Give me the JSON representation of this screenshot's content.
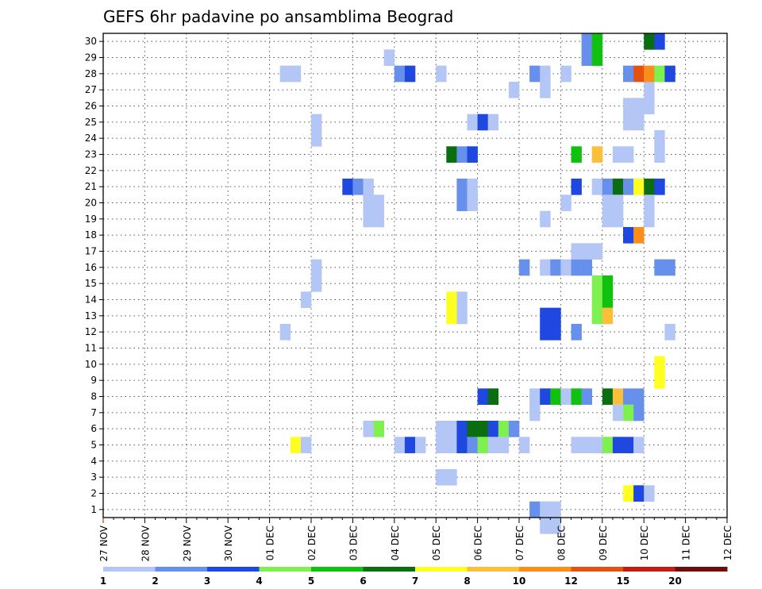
{
  "chart_data": {
    "type": "heatmap",
    "title": "GEFS 6hr padavine po ansamblima Beograd",
    "xlabel": "",
    "ylabel": "",
    "x_tick_labels": [
      "27 NOV",
      "28 NOV",
      "29 NOV",
      "30 NOV",
      "01 DEC",
      "02 DEC",
      "03 DEC",
      "04 DEC",
      "05 DEC",
      "06 DEC",
      "07 DEC",
      "08 DEC",
      "09 DEC",
      "10 DEC",
      "11 DEC",
      "12 DEC"
    ],
    "y_tick_labels": [
      "1",
      "2",
      "3",
      "4",
      "5",
      "6",
      "7",
      "8",
      "9",
      "10",
      "11",
      "12",
      "13",
      "14",
      "15",
      "16",
      "17",
      "18",
      "19",
      "20",
      "21",
      "22",
      "23",
      "24",
      "25",
      "26",
      "27",
      "28",
      "29",
      "30"
    ],
    "x_unit": "6-hour steps from 27 NOV 00",
    "x_range": [
      0,
      60
    ],
    "y_range": [
      0.5,
      30.5
    ],
    "grid": true,
    "colorbar": {
      "levels": [
        "1",
        "2",
        "3",
        "4",
        "5",
        "6",
        "7",
        "8",
        "10",
        "12",
        "15",
        "20"
      ],
      "colors": [
        "#b4c6f5",
        "#6690ec",
        "#1f48e0",
        "#7ef04f",
        "#10c20f",
        "#0a6e10",
        "#ffff20",
        "#fcbf3a",
        "#fb8d18",
        "#e45212",
        "#c01e14",
        "#6f0c0c"
      ]
    },
    "cells": [
      [
        17,
        28,
        0
      ],
      [
        18,
        28,
        0
      ],
      [
        20,
        24,
        0
      ],
      [
        20,
        25,
        0
      ],
      [
        19,
        14,
        0
      ],
      [
        20,
        15,
        0
      ],
      [
        20,
        16,
        0
      ],
      [
        17,
        12,
        0
      ],
      [
        18,
        5,
        6
      ],
      [
        19,
        5,
        0
      ],
      [
        23,
        21,
        2
      ],
      [
        24,
        21,
        1
      ],
      [
        25,
        21,
        0
      ],
      [
        25,
        20,
        0
      ],
      [
        26,
        20,
        0
      ],
      [
        25,
        19,
        0
      ],
      [
        26,
        19,
        0
      ],
      [
        25,
        6,
        0
      ],
      [
        26,
        6,
        3
      ],
      [
        27,
        29,
        0
      ],
      [
        28,
        28,
        1
      ],
      [
        29,
        28,
        2
      ],
      [
        28,
        5,
        0
      ],
      [
        29,
        5,
        2
      ],
      [
        30,
        5,
        0
      ],
      [
        32,
        28,
        0
      ],
      [
        32,
        6,
        0
      ],
      [
        33,
        6,
        0
      ],
      [
        32,
        5,
        0
      ],
      [
        33,
        5,
        0
      ],
      [
        32,
        3,
        0
      ],
      [
        33,
        3,
        0
      ],
      [
        33,
        23,
        5
      ],
      [
        34,
        23,
        1
      ],
      [
        35,
        23,
        2
      ],
      [
        34,
        21,
        1
      ],
      [
        35,
        21,
        0
      ],
      [
        34,
        20,
        1
      ],
      [
        35,
        20,
        0
      ],
      [
        33,
        14,
        6
      ],
      [
        34,
        14,
        0
      ],
      [
        33,
        13,
        6
      ],
      [
        34,
        13,
        0
      ],
      [
        35,
        25,
        0
      ],
      [
        36,
        25,
        2
      ],
      [
        37,
        25,
        0
      ],
      [
        36,
        8,
        2
      ],
      [
        37,
        8,
        5
      ],
      [
        34,
        6,
        2
      ],
      [
        35,
        6,
        5
      ],
      [
        36,
        6,
        5
      ],
      [
        37,
        6,
        2
      ],
      [
        38,
        6,
        3
      ],
      [
        39,
        6,
        1
      ],
      [
        34,
        5,
        2
      ],
      [
        35,
        5,
        1
      ],
      [
        36,
        5,
        3
      ],
      [
        37,
        5,
        0
      ],
      [
        38,
        5,
        0
      ],
      [
        40,
        5,
        0
      ],
      [
        39,
        27,
        0
      ],
      [
        40,
        16,
        1
      ],
      [
        41,
        28,
        1
      ],
      [
        42,
        28,
        0
      ],
      [
        42,
        27,
        0
      ],
      [
        42,
        19,
        0
      ],
      [
        41,
        1,
        1
      ],
      [
        42,
        1,
        0
      ],
      [
        43,
        1,
        0
      ],
      [
        42,
        0,
        0
      ],
      [
        43,
        0,
        0
      ],
      [
        44,
        28,
        0
      ],
      [
        42,
        16,
        0
      ],
      [
        43,
        16,
        1
      ],
      [
        44,
        16,
        0
      ],
      [
        45,
        16,
        1
      ],
      [
        46,
        16,
        1
      ],
      [
        45,
        17,
        0
      ],
      [
        46,
        17,
        0
      ],
      [
        47,
        17,
        0
      ],
      [
        42,
        13,
        2
      ],
      [
        43,
        13,
        2
      ],
      [
        42,
        12,
        2
      ],
      [
        43,
        12,
        2
      ],
      [
        41,
        8,
        0
      ],
      [
        42,
        8,
        2
      ],
      [
        43,
        8,
        4
      ],
      [
        44,
        8,
        0
      ],
      [
        45,
        8,
        4
      ],
      [
        46,
        8,
        1
      ],
      [
        41,
        7,
        0
      ],
      [
        45,
        23,
        4
      ],
      [
        45,
        21,
        2
      ],
      [
        44,
        20,
        0
      ],
      [
        45,
        12,
        1
      ],
      [
        46,
        29,
        1
      ],
      [
        47,
        29,
        4
      ],
      [
        46,
        30,
        1
      ],
      [
        47,
        30,
        4
      ],
      [
        47,
        21,
        0
      ],
      [
        48,
        21,
        1
      ],
      [
        49,
        21,
        5
      ],
      [
        50,
        21,
        1
      ],
      [
        51,
        21,
        6
      ],
      [
        52,
        21,
        5
      ],
      [
        53,
        21,
        2
      ],
      [
        48,
        20,
        0
      ],
      [
        49,
        20,
        0
      ],
      [
        48,
        19,
        0
      ],
      [
        49,
        19,
        0
      ],
      [
        50,
        18,
        2
      ],
      [
        51,
        18,
        8
      ],
      [
        52,
        19,
        0
      ],
      [
        52,
        20,
        0
      ],
      [
        47,
        23,
        7
      ],
      [
        49,
        23,
        0
      ],
      [
        50,
        23,
        0
      ],
      [
        47,
        15,
        3
      ],
      [
        48,
        15,
        4
      ],
      [
        47,
        14,
        3
      ],
      [
        48,
        14,
        4
      ],
      [
        47,
        13,
        3
      ],
      [
        48,
        13,
        7
      ],
      [
        48,
        8,
        5
      ],
      [
        49,
        8,
        7
      ],
      [
        50,
        8,
        1
      ],
      [
        51,
        8,
        1
      ],
      [
        49,
        7,
        0
      ],
      [
        50,
        7,
        3
      ],
      [
        51,
        7,
        1
      ],
      [
        45,
        5,
        0
      ],
      [
        46,
        5,
        0
      ],
      [
        47,
        5,
        0
      ],
      [
        48,
        5,
        3
      ],
      [
        49,
        5,
        2
      ],
      [
        50,
        5,
        2
      ],
      [
        51,
        5,
        0
      ],
      [
        50,
        2,
        6
      ],
      [
        51,
        2,
        2
      ],
      [
        52,
        2,
        0
      ],
      [
        50,
        26,
        0
      ],
      [
        51,
        26,
        0
      ],
      [
        50,
        25,
        0
      ],
      [
        51,
        25,
        0
      ],
      [
        52,
        27,
        0
      ],
      [
        52,
        26,
        0
      ],
      [
        50,
        28,
        1
      ],
      [
        51,
        28,
        9
      ],
      [
        52,
        28,
        8
      ],
      [
        53,
        28,
        3
      ],
      [
        54,
        28,
        2
      ],
      [
        53,
        24,
        0
      ],
      [
        53,
        23,
        0
      ],
      [
        53,
        16,
        1
      ],
      [
        54,
        16,
        1
      ],
      [
        53,
        10,
        6
      ],
      [
        53,
        9,
        6
      ],
      [
        54,
        12,
        0
      ],
      [
        52,
        30,
        5
      ],
      [
        53,
        30,
        2
      ]
    ]
  }
}
